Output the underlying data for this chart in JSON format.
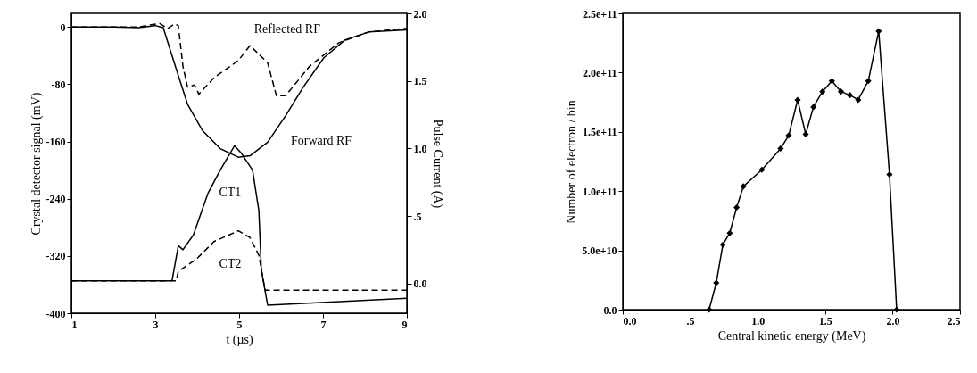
{
  "chart_data": [
    {
      "type": "line",
      "xlabel": "t (µs)",
      "ylabel": "Crystal detector signal (mV)",
      "y2label": "Pulse Current (A)",
      "xlim": [
        1,
        9
      ],
      "xticks": [
        1,
        3,
        5,
        7,
        9
      ],
      "ylim": [
        -400,
        19
      ],
      "yticks": [
        0,
        -80,
        -160,
        -240,
        -320,
        -400
      ],
      "y2lim": [
        -0.22,
        2.0
      ],
      "y2ticks": [
        {
          "value": 2.0,
          "label": "2.0"
        },
        {
          "value": 1.5,
          "label": "1.5"
        },
        {
          "value": 1.0,
          "label": "1.0"
        },
        {
          "value": 0.5,
          "label": ".5"
        },
        {
          "value": 0.0,
          "label": "0.0"
        }
      ],
      "series": [
        {
          "name": "Forward RF",
          "color": "#000000",
          "line_style": "solid",
          "x": [
            1,
            2,
            2.6,
            3.0,
            3.19,
            3.55,
            3.77,
            4.13,
            4.55,
            4.98,
            5.26,
            5.68,
            6.11,
            6.53,
            7.02,
            7.53,
            8.09,
            9
          ],
          "values": [
            0,
            0,
            -1,
            2,
            -1,
            -68,
            -108,
            -145,
            -170,
            -182,
            -180,
            -161,
            -124,
            -84,
            -43,
            -18,
            -7,
            -4
          ]
        },
        {
          "name": "Reflected RF",
          "color": "#000000",
          "line_style": "dashed",
          "x": [
            1,
            2,
            2.6,
            2.9,
            3.1,
            3.3,
            3.45,
            3.55,
            3.66,
            3.77,
            3.94,
            4.04,
            4.4,
            4.98,
            5.26,
            5.68,
            5.89,
            6.11,
            6.68,
            7.38,
            8.09,
            9
          ],
          "values": [
            0,
            0,
            0,
            3,
            5,
            -2,
            4,
            2,
            -55,
            -84,
            -81,
            -94,
            -71,
            -47,
            -26,
            -50,
            -96,
            -96,
            -55,
            -22,
            -7,
            -2
          ]
        },
        {
          "name": "CT1",
          "color": "#000000",
          "line_style": "solid",
          "axis": "y2",
          "x": [
            1,
            3.4,
            3.55,
            3.66,
            3.91,
            4.26,
            4.55,
            4.89,
            5.04,
            5.32,
            5.47,
            5.53,
            5.68,
            9
          ],
          "values": [
            0.02,
            0.02,
            0.28,
            0.25,
            0.36,
            0.67,
            0.84,
            1.02,
            0.97,
            0.84,
            0.54,
            0.1,
            -0.16,
            -0.11
          ]
        },
        {
          "name": "CT2",
          "color": "#000000",
          "line_style": "dashed",
          "axis": "y2",
          "x": [
            1,
            3.5,
            3.55,
            3.98,
            4.4,
            4.98,
            5.26,
            5.47,
            5.62,
            9
          ],
          "values": [
            0.02,
            0.02,
            0.09,
            0.18,
            0.31,
            0.39,
            0.34,
            0.21,
            -0.05,
            -0.05
          ]
        }
      ]
    },
    {
      "type": "line",
      "xlabel": "Central kinetic energy  (MeV)",
      "ylabel": "Number of electron / bin",
      "marker": "diamond",
      "line_style": "solid",
      "xlim": [
        0,
        2.5
      ],
      "xticks": [
        {
          "value": 0,
          "label": "0.0"
        },
        {
          "value": 0.5,
          "label": ".5"
        },
        {
          "value": 1.0,
          "label": "1.0"
        },
        {
          "value": 1.5,
          "label": "1.5"
        },
        {
          "value": 2.0,
          "label": "2.0"
        },
        {
          "value": 2.5,
          "label": "2.5"
        }
      ],
      "ylim": [
        0,
        250000000000.0
      ],
      "yticks": [
        {
          "value": 0,
          "label": "0.0"
        },
        {
          "value": 50000000000.0,
          "label": "5.0e+10"
        },
        {
          "value": 100000000000.0,
          "label": "1.0e+11"
        },
        {
          "value": 150000000000.0,
          "label": "1.5e+11"
        },
        {
          "value": 200000000000.0,
          "label": "2.0e+11"
        },
        {
          "value": 250000000000.0,
          "label": "2.5e+11"
        }
      ],
      "series": [
        {
          "color": "#000000",
          "x": [
            0.64,
            0.693,
            0.742,
            0.793,
            0.844,
            0.894,
            1.031,
            1.17,
            1.23,
            1.296,
            1.356,
            1.413,
            1.48,
            1.55,
            1.617,
            1.683,
            1.745,
            1.82,
            1.897,
            1.977,
            2.03
          ],
          "values": [
            0,
            22600000000.0,
            54800000000.0,
            64600000000.0,
            86200000000.0,
            104000000000.0,
            118000000000.0,
            136000000000.0,
            147000000000.0,
            177000000000.0,
            148000000000.0,
            171000000000.0,
            184000000000.0,
            193000000000.0,
            184000000000.0,
            181000000000.0,
            177000000000.0,
            193000000000.0,
            235000000000.0,
            114000000000.0,
            0
          ]
        }
      ]
    }
  ]
}
